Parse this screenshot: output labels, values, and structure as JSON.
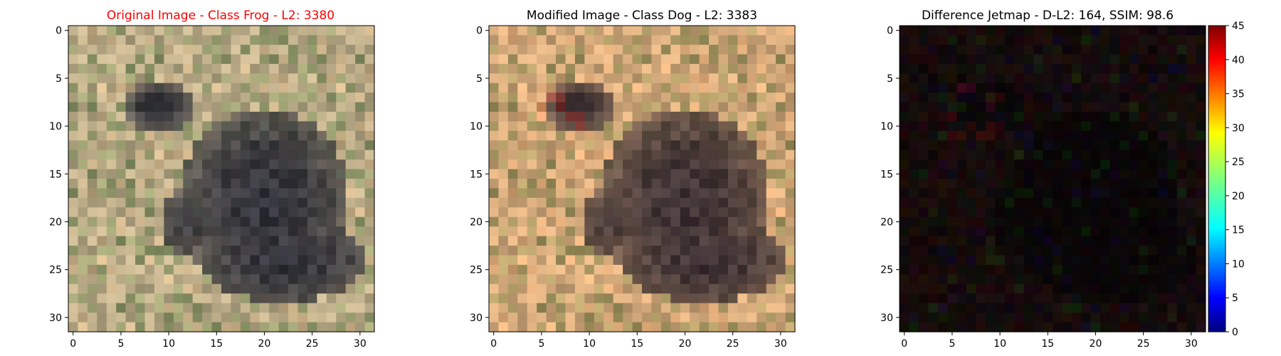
{
  "chart_data": [
    {
      "type": "heatmap",
      "title": "Original Image - Class Frog - L2: 3380",
      "title_color": "#ff0000",
      "x_ticks": [
        0,
        5,
        10,
        15,
        20,
        25,
        30
      ],
      "y_ticks": [
        0,
        5,
        10,
        15,
        20,
        25,
        30
      ],
      "xlim": [
        -0.5,
        31.5
      ],
      "ylim": [
        31.5,
        -0.5
      ],
      "image_size": [
        32,
        32
      ],
      "content": "low-resolution photo of a dark frog on sandy speckled ground"
    },
    {
      "type": "heatmap",
      "title": "Modified Image - Class Dog - L2: 3383",
      "title_color": "#000000",
      "x_ticks": [
        0,
        5,
        10,
        15,
        20,
        25,
        30
      ],
      "y_ticks": [
        0,
        5,
        10,
        15,
        20,
        25,
        30
      ],
      "xlim": [
        -0.5,
        31.5
      ],
      "ylim": [
        31.5,
        -0.5
      ],
      "image_size": [
        32,
        32
      ],
      "content": "same frog image with warmer tint and slight reddish perturbation near the head"
    },
    {
      "type": "heatmap",
      "title": "Difference Jetmap - D-L2: 164, SSIM: 98.6",
      "title_color": "#000000",
      "x_ticks": [
        0,
        5,
        10,
        15,
        20,
        25,
        30
      ],
      "y_ticks": [
        0,
        5,
        10,
        15,
        20,
        25,
        30
      ],
      "xlim": [
        -0.5,
        31.5
      ],
      "ylim": [
        31.5,
        -0.5
      ],
      "image_size": [
        32,
        32
      ],
      "colorbar": {
        "colormap": "jet",
        "min": 0,
        "max": 45,
        "ticks": [
          0,
          5,
          10,
          15,
          20,
          25,
          30,
          35,
          40,
          45
        ]
      }
    }
  ]
}
